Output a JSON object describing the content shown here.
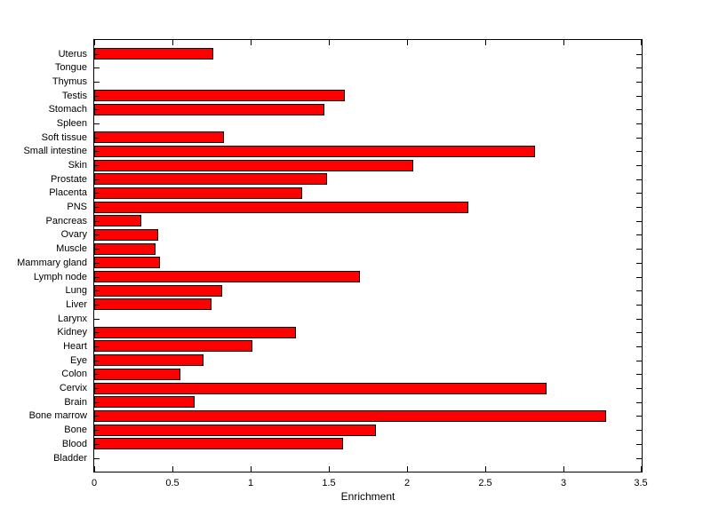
{
  "figure": {
    "background_color": "#ffffff",
    "axis_color": "#000000",
    "text_color": "#000000"
  },
  "chart_data": {
    "type": "bar",
    "orientation": "horizontal",
    "title": "",
    "xlabel": "Enrichment",
    "ylabel": "",
    "xlim": [
      0,
      3.5
    ],
    "xticks": [
      0,
      0.5,
      1,
      1.5,
      2,
      2.5,
      3,
      3.5
    ],
    "xtick_labels": [
      "0",
      "0.5",
      "1",
      "1.5",
      "2",
      "2.5",
      "3",
      "3.5"
    ],
    "category_order": "top-to-bottom",
    "categories": [
      "Uterus",
      "Tongue",
      "Thymus",
      "Testis",
      "Stomach",
      "Spleen",
      "Soft tissue",
      "Small intestine",
      "Skin",
      "Prostate",
      "Placenta",
      "PNS",
      "Pancreas",
      "Ovary",
      "Muscle",
      "Mammary gland",
      "Lymph node",
      "Lung",
      "Liver",
      "Larynx",
      "Kidney",
      "Heart",
      "Eye",
      "Colon",
      "Cervix",
      "Brain",
      "Bone marrow",
      "Bone",
      "Blood",
      "Bladder"
    ],
    "values": [
      0.76,
      0,
      0,
      1.6,
      1.47,
      0,
      0.83,
      2.82,
      2.04,
      1.49,
      1.33,
      2.39,
      0.3,
      0.41,
      0.39,
      0.42,
      1.7,
      0.82,
      0.75,
      0,
      1.29,
      1.01,
      0.7,
      0.55,
      2.89,
      0.64,
      3.27,
      1.8,
      1.59,
      0
    ],
    "bar_color": "#ff0000",
    "bar_edge_color": "#000000",
    "grid": false,
    "legend": null,
    "tick_direction": "in",
    "box": true
  }
}
